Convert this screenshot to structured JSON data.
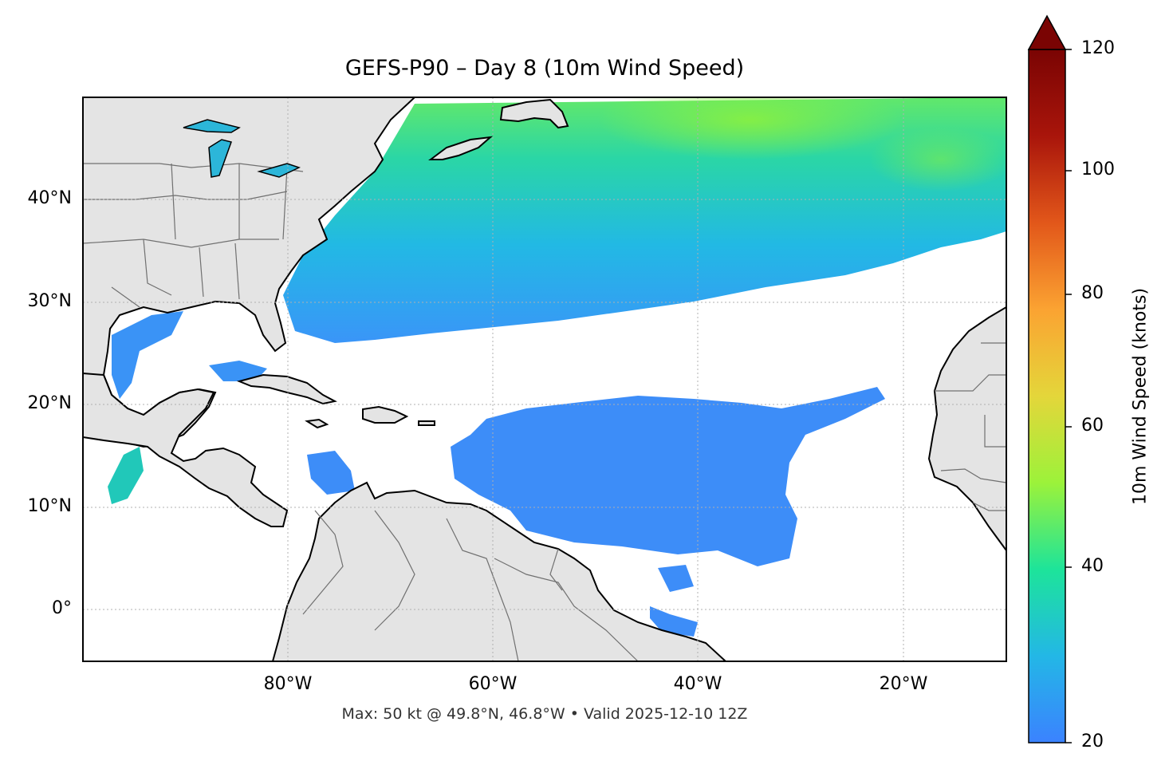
{
  "title": "GEFS-P90 – Day 8 (10m Wind Speed)",
  "footer": "Max: 50 kt @ 49.8°N, 46.8°W • Valid 2025-12-10 12Z",
  "colorbar": {
    "label": "10m Wind Speed (knots)",
    "ticks": [
      "20",
      "40",
      "60",
      "80",
      "100",
      "120"
    ],
    "min": 20,
    "max": 120,
    "extend": "max",
    "colors": [
      "#3b82ff",
      "#23b7e6",
      "#1de49a",
      "#9cf23a",
      "#e4d63a",
      "#fba332",
      "#e2571a",
      "#a9150b",
      "#7a0403"
    ]
  },
  "axes": {
    "lat_ticks": [
      "40°N",
      "30°N",
      "20°N",
      "10°N",
      "0°"
    ],
    "lon_ticks": [
      "80°W",
      "60°W",
      "40°W",
      "20°W"
    ],
    "lon_range": [
      -100,
      -10
    ],
    "lat_range": [
      -5,
      50
    ],
    "gridlines": true
  },
  "map": {
    "region": "North Atlantic basin",
    "land_color": "#e4e4e4",
    "coast_color": "#000000",
    "border_color": "#707070"
  }
}
